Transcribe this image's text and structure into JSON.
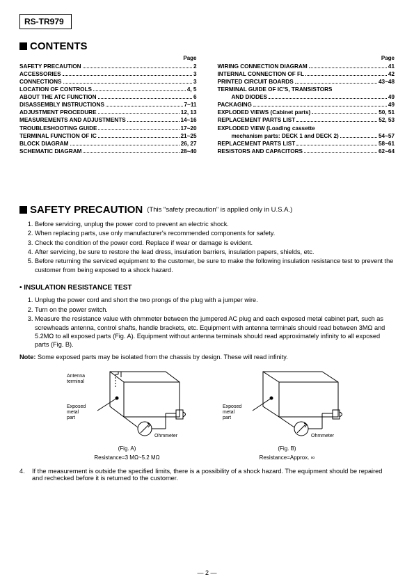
{
  "model": "RS-TR979",
  "contents_title": "CONTENTS",
  "page_label": "Page",
  "toc_left": [
    {
      "label": "SAFETY PRECAUTION",
      "page": "2"
    },
    {
      "label": "ACCESSORIES",
      "page": "3"
    },
    {
      "label": "CONNECTIONS",
      "page": "3"
    },
    {
      "label": "LOCATION OF CONTROLS",
      "page": "4, 5"
    },
    {
      "label": "ABOUT THE ATC FUNCTION",
      "page": "6"
    },
    {
      "label": "DISASSEMBLY INSTRUCTIONS",
      "page": "7~11"
    },
    {
      "label": "ADJUSTMENT PROCEDURE",
      "page": "12, 13"
    },
    {
      "label": "MEASUREMENTS AND ADJUSTMENTS",
      "page": "14~16"
    },
    {
      "label": "TROUBLESHOOTING GUIDE",
      "page": "17~20"
    },
    {
      "label": "TERMINAL FUNCTION OF IC",
      "page": "21~25"
    },
    {
      "label": "BLOCK DIAGRAM",
      "page": "26, 27"
    },
    {
      "label": "SCHEMATIC DIAGRAM",
      "page": "28~40"
    }
  ],
  "toc_right": [
    {
      "label": "WIRING CONNECTION DIAGRAM",
      "page": "41"
    },
    {
      "label": "INTERNAL CONNECTION OF FL",
      "page": "42"
    },
    {
      "label": "PRINTED CIRCUIT BOARDS",
      "page": "43~48"
    },
    {
      "label": "TERMINAL GUIDE OF IC'S, TRANSISTORS",
      "page": ""
    },
    {
      "label": "AND DIODES",
      "page": "49",
      "indent": true
    },
    {
      "label": "PACKAGING",
      "page": "49"
    },
    {
      "label": "EXPLODED VIEWS (Cabinet parts)",
      "page": "50, 51"
    },
    {
      "label": "REPLACEMENT PARTS LIST",
      "page": "52, 53"
    },
    {
      "label": "EXPLODED VIEW (Loading cassette",
      "page": ""
    },
    {
      "label": "mechanism parts: DECK 1 and DECK 2)",
      "page": "54~57",
      "indent": true
    },
    {
      "label": "REPLACEMENT PARTS LIST",
      "page": "58~61"
    },
    {
      "label": "RESISTORS AND CAPACITORS",
      "page": "62~64"
    }
  ],
  "safety_title": "SAFETY PRECAUTION",
  "safety_sub": "(This \"safety precaution\" is applied only in U.S.A.)",
  "safety_items": [
    "Before servicing, unplug the power cord to prevent an electric shock.",
    "When replacing parts, use only manufacturer's recommended components for safety.",
    "Check the condition of the power cord.  Replace if wear or damage is evident.",
    "After servicing, be sure to restore the lead dress, insulation barriers, insulation papers, shields, etc.",
    "Before returning the serviced equipment to the customer, be sure to make the following insulation resistance test to prevent the customer from being exposed to a shock hazard."
  ],
  "ins_head": "• INSULATION RESISTANCE TEST",
  "ins_items": [
    "Unplug the power cord and short the two prongs of the plug with a jumper wire.",
    "Turn on the power switch.",
    "Measure the resistance value with ohmmeter between the jumpered AC plug and each exposed metal cabinet part, such as screwheads antenna, control shafts, handle brackets, etc.  Equipment with antenna terminals should read between 3MΩ and 5.2MΩ to all exposed parts (Fig. A).  Equipment without antenna terminals should read approximately infinity to all exposed parts (Fig. B)."
  ],
  "note_label": "Note:",
  "note_text": " Some exposed parts may be isolated from the chassis by design.  These will read infinity.",
  "figA": {
    "ant_label": "Antenna\nterminal",
    "exp_label": "Exposed\nmetal\npart",
    "ohm": "Ohmmeter",
    "caption": "(Fig. A)",
    "res": "Resistance=3 MΩ~5.2 MΩ"
  },
  "figB": {
    "exp_label": "Exposed\nmetal\npart",
    "ohm": "Ohmmeter",
    "caption": "(Fig. B)",
    "res": "Resistance=Approx. ∞"
  },
  "para4_num": "4.",
  "para4": "If the measurement is outside the specified limits, there is a possibility of a shock hazard.  The equipment should be repaired and rechecked before it is returned to the customer.",
  "pagenum": "— 2 —"
}
